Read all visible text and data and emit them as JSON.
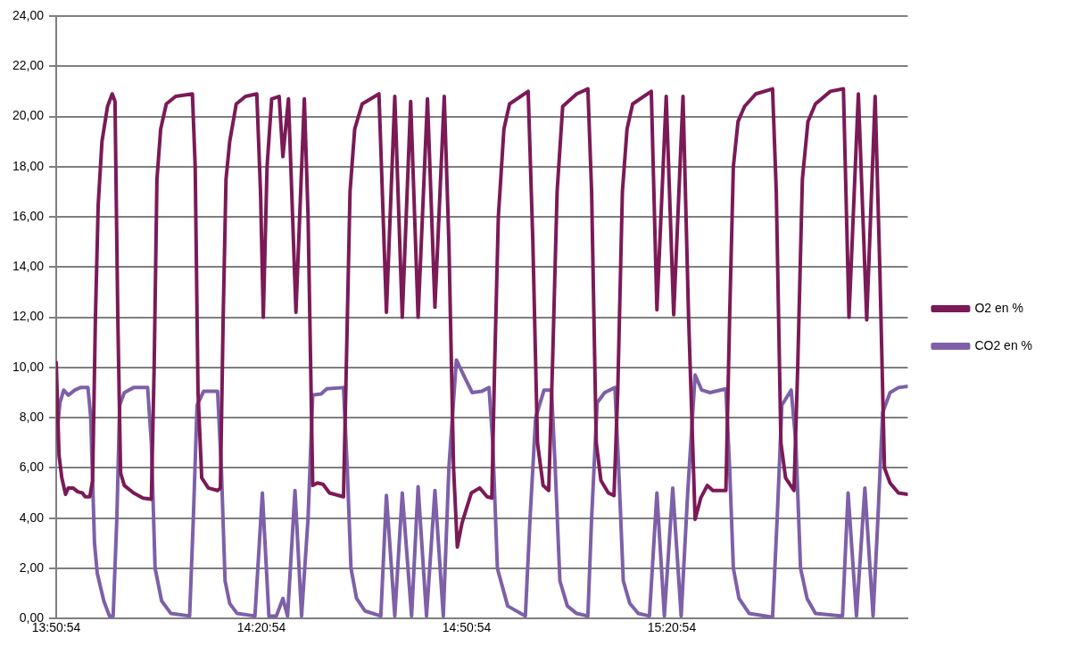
{
  "chart_data": {
    "type": "line",
    "xlim": [
      13.8483,
      15.9233
    ],
    "xticks": [
      {
        "value": 13.8483,
        "label": "13:50:54"
      },
      {
        "value": 14.3483,
        "label": "14:20:54"
      },
      {
        "value": 14.8483,
        "label": "14:50:54"
      },
      {
        "value": 15.3483,
        "label": "15:20:54"
      }
    ],
    "ylim": [
      0,
      24
    ],
    "yticks": [
      {
        "value": 0,
        "label": "0,00"
      },
      {
        "value": 2,
        "label": "2,00"
      },
      {
        "value": 4,
        "label": "4,00"
      },
      {
        "value": 6,
        "label": "6,00"
      },
      {
        "value": 8,
        "label": "8,00"
      },
      {
        "value": 10,
        "label": "10,00"
      },
      {
        "value": 12,
        "label": "12,00"
      },
      {
        "value": 14,
        "label": "14,00"
      },
      {
        "value": 16,
        "label": "16,00"
      },
      {
        "value": 18,
        "label": "18,00"
      },
      {
        "value": 20,
        "label": "20,00"
      },
      {
        "value": 22,
        "label": "22,00"
      },
      {
        "value": 24,
        "label": "24,00"
      }
    ],
    "grid": "y",
    "legend": "right",
    "marker": "none",
    "line_style": "solid",
    "series": [
      {
        "name": "O2 en %",
        "color": "#7b1a56",
        "x": [
          13.8483,
          13.8551,
          13.8619,
          13.871,
          13.8778,
          13.8892,
          13.9006,
          13.9119,
          13.9188,
          13.9301,
          13.9369,
          13.9438,
          13.9506,
          13.9597,
          13.9733,
          13.9847,
          13.9915,
          13.9983,
          14.0051,
          14.0142,
          14.0369,
          14.0597,
          14.0801,
          14.0869,
          14.0937,
          14.1028,
          14.1165,
          14.1392,
          14.1801,
          14.1869,
          14.1938,
          14.2028,
          14.2188,
          14.2415,
          14.2483,
          14.2551,
          14.262,
          14.271,
          14.287,
          14.3097,
          14.337,
          14.3461,
          14.3529,
          14.362,
          14.3733,
          14.3915,
          14.4006,
          14.4142,
          14.4324,
          14.4415,
          14.4529,
          14.462,
          14.4733,
          14.4847,
          14.4983,
          14.5142,
          14.5483,
          14.5551,
          14.5642,
          14.5756,
          14.5937,
          14.6347,
          14.6529,
          14.6733,
          14.6915,
          14.712,
          14.7301,
          14.7529,
          14.7711,
          14.7938,
          14.8051,
          14.8165,
          14.8256,
          14.837,
          14.8483,
          14.8597,
          14.8801,
          14.8983,
          14.9097,
          14.9165,
          14.9256,
          14.9392,
          14.9529,
          14.9983,
          15.0097,
          15.021,
          15.0347,
          15.0483,
          15.0574,
          15.0688,
          15.0824,
          15.1165,
          15.1438,
          15.1529,
          15.1642,
          15.1756,
          15.1938,
          15.2074,
          15.2165,
          15.2279,
          15.2392,
          15.2529,
          15.2983,
          15.312,
          15.3347,
          15.3529,
          15.3756,
          15.3892,
          15.4051,
          15.4188,
          15.4347,
          15.4483,
          15.4801,
          15.4892,
          15.4983,
          15.5097,
          15.5256,
          15.5529,
          15.5938,
          15.6029,
          15.6142,
          15.6256,
          15.646,
          15.6551,
          15.6665,
          15.6801,
          15.6983,
          15.7347,
          15.7665,
          15.7801,
          15.8029,
          15.8233,
          15.8438,
          15.8551,
          15.8665,
          15.8801,
          15.9006,
          15.9233
        ],
        "values": [
          10.2,
          6.5,
          5.6,
          4.95,
          5.2,
          5.2,
          5.05,
          5.0,
          4.85,
          4.85,
          5.5,
          12,
          16.5,
          19,
          20.4,
          20.9,
          20.6,
          12,
          5.8,
          5.3,
          5.0,
          4.8,
          4.75,
          10,
          17.5,
          19.5,
          20.5,
          20.8,
          20.9,
          18,
          9,
          5.6,
          5.2,
          5.1,
          5.2,
          12,
          17.5,
          19,
          20.5,
          20.8,
          20.9,
          17,
          12.0,
          18,
          20.7,
          20.8,
          18.4,
          20.7,
          12.2,
          16,
          20.7,
          16,
          5.3,
          5.4,
          5.35,
          5.0,
          4.85,
          10,
          17,
          19.5,
          20.5,
          20.9,
          12.2,
          20.8,
          12.0,
          20.6,
          12.0,
          20.7,
          12.4,
          20.8,
          15,
          6,
          2.85,
          3.8,
          4.4,
          5.0,
          5.2,
          4.85,
          4.8,
          10,
          16,
          19.5,
          20.5,
          21.0,
          15,
          7,
          5.3,
          5.1,
          10,
          17,
          20.4,
          20.9,
          21.1,
          17,
          7,
          5.5,
          5.0,
          4.9,
          9,
          17,
          19.5,
          20.5,
          21.0,
          12.3,
          20.8,
          12.1,
          20.8,
          12,
          3.95,
          4.8,
          5.3,
          5.1,
          5.1,
          12,
          18,
          19.8,
          20.4,
          20.9,
          21.1,
          17,
          7,
          5.6,
          5.1,
          10,
          17.5,
          19.8,
          20.5,
          21.0,
          21.1,
          12.0,
          20.9,
          11.9,
          20.8,
          14,
          6,
          5.4,
          5.0,
          4.95
        ]
      },
      {
        "name": "CO2 en %",
        "color": "#7d60a8",
        "x": [
          13.8483,
          13.8574,
          13.8665,
          13.8778,
          13.8937,
          13.9074,
          13.9256,
          13.9324,
          13.9415,
          13.9483,
          13.9642,
          13.9779,
          13.9869,
          13.996,
          14.0029,
          14.0142,
          14.0369,
          14.071,
          14.0801,
          14.0892,
          14.1051,
          14.1279,
          14.1733,
          14.1824,
          14.1915,
          14.2074,
          14.2415,
          14.2506,
          14.2597,
          14.271,
          14.2892,
          14.3325,
          14.3506,
          14.3665,
          14.3847,
          14.4006,
          14.412,
          14.4301,
          14.4461,
          14.462,
          14.4733,
          14.4938,
          14.5074,
          14.5483,
          14.5574,
          14.5665,
          14.5801,
          14.6006,
          14.6392,
          14.6529,
          14.6733,
          14.6915,
          14.7142,
          14.7301,
          14.7506,
          14.7711,
          14.7915,
          14.8051,
          14.8233,
          14.8438,
          14.862,
          14.8847,
          14.9029,
          14.912,
          14.9233,
          14.9483,
          14.9915,
          15.0029,
          15.0165,
          15.037,
          15.0551,
          15.0642,
          15.0756,
          15.0938,
          15.1165,
          15.1438,
          15.1529,
          15.1665,
          15.1847,
          15.2097,
          15.2188,
          15.2301,
          15.246,
          15.2665,
          15.2938,
          15.312,
          15.3302,
          15.3506,
          15.3711,
          15.387,
          15.4051,
          15.4211,
          15.4415,
          15.4801,
          15.4892,
          15.4983,
          15.512,
          15.537,
          15.5938,
          15.6051,
          15.6165,
          15.6392,
          15.6506,
          15.662,
          15.6779,
          15.6983,
          15.7642,
          15.7779,
          15.7983,
          15.8188,
          15.8388,
          15.8506,
          15.862,
          15.8801,
          15.9006,
          15.9233
        ],
        "values": [
          7.1,
          8.6,
          9.1,
          8.9,
          9.1,
          9.2,
          9.2,
          8,
          3,
          1.8,
          0.7,
          0.1,
          0.1,
          4,
          8.5,
          9.0,
          9.2,
          9.2,
          7,
          2,
          0.7,
          0.2,
          0.1,
          4,
          8.5,
          9.05,
          9.05,
          6,
          1.5,
          0.6,
          0.2,
          0.1,
          5.0,
          0.1,
          0.1,
          0.8,
          0.1,
          5.1,
          0.1,
          4,
          8.9,
          8.95,
          9.15,
          9.2,
          6,
          2,
          0.8,
          0.3,
          0.1,
          4.9,
          0.1,
          5.0,
          0.1,
          5.25,
          0.1,
          5.1,
          0.1,
          6,
          10.3,
          9.6,
          9.0,
          9.05,
          9.2,
          7,
          2,
          0.5,
          0.1,
          4,
          8.0,
          9.1,
          9.1,
          6,
          1.5,
          0.5,
          0.2,
          0.1,
          4,
          8.6,
          9.0,
          9.2,
          6,
          1.5,
          0.6,
          0.2,
          0.1,
          5.0,
          0.1,
          5.2,
          0.1,
          5,
          9.7,
          9.1,
          9.0,
          9.15,
          6,
          2,
          0.8,
          0.2,
          0.05,
          4,
          8.5,
          9.1,
          7,
          2,
          0.8,
          0.2,
          0.1,
          5.0,
          0.1,
          5.2,
          0.1,
          4,
          8.2,
          9.0,
          9.2,
          9.25
        ]
      }
    ]
  }
}
